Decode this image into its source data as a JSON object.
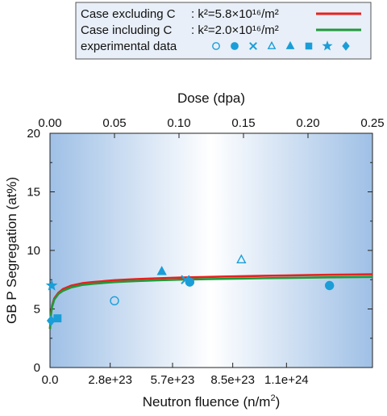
{
  "chart_data": {
    "type": "scatter",
    "x_bottom": {
      "label": "Neutron fluence (n/m²)",
      "range": [
        0,
        1.5e+24
      ],
      "ticks": [
        0,
        2.8e+23,
        5.7e+23,
        8.5e+23,
        1.1e+24
      ],
      "tick_labels": [
        "0.0",
        "2.8e+23",
        "5.7e+23",
        "8.5e+23",
        "1.1e+24"
      ]
    },
    "x_top": {
      "label": "Dose (dpa)",
      "range": [
        0,
        0.25
      ],
      "ticks": [
        0,
        0.05,
        0.1,
        0.15,
        0.2,
        0.25
      ],
      "tick_labels": [
        "0.00",
        "0.05",
        "0.10",
        "0.15",
        "0.20",
        "0.25"
      ]
    },
    "y": {
      "label": "GB P Segregation (at%)",
      "range": [
        0,
        20
      ],
      "ticks": [
        0,
        5,
        10,
        15,
        20
      ],
      "tick_labels": [
        "0",
        "5",
        "10",
        "15",
        "20"
      ]
    },
    "series": [
      {
        "name": "Case excluding C",
        "formula_label": "k²=5.8×10¹⁶/m²",
        "kind": "line",
        "color": "#e8211f",
        "x": [
          0,
          5e+21,
          1e+22,
          2e+22,
          4e+22,
          6e+22,
          1e+23,
          1.5e+23,
          2e+23,
          3e+23,
          4e+23,
          5e+23,
          6e+23,
          7e+23,
          8e+23,
          9e+23,
          1e+24,
          1.1e+24,
          1.2e+24,
          1.3e+24,
          1.4e+24,
          1.5e+24
        ],
        "y": [
          3.3,
          4.7,
          5.3,
          5.9,
          6.4,
          6.7,
          7.0,
          7.2,
          7.3,
          7.45,
          7.55,
          7.62,
          7.68,
          7.72,
          7.76,
          7.8,
          7.83,
          7.86,
          7.89,
          7.92,
          7.94,
          7.96
        ]
      },
      {
        "name": "Case including C",
        "formula_label": "k²=2.0×10¹⁶/m²",
        "kind": "line",
        "color": "#1f9a3a",
        "x": [
          0,
          5e+21,
          1e+22,
          2e+22,
          4e+22,
          6e+22,
          1e+23,
          1.5e+23,
          2e+23,
          3e+23,
          4e+23,
          5e+23,
          6e+23,
          7e+23,
          8e+23,
          9e+23,
          1e+24,
          1.1e+24,
          1.2e+24,
          1.3e+24,
          1.4e+24,
          1.5e+24
        ],
        "y": [
          3.3,
          4.6,
          5.2,
          5.8,
          6.3,
          6.55,
          6.85,
          7.05,
          7.15,
          7.3,
          7.38,
          7.45,
          7.5,
          7.54,
          7.57,
          7.6,
          7.63,
          7.65,
          7.68,
          7.7,
          7.72,
          7.74
        ]
      }
    ],
    "experimental": {
      "name": "experimental data",
      "color": "#1a9ed8",
      "points": [
        {
          "marker": "circle-open",
          "x": 3e+23,
          "y": 5.7
        },
        {
          "marker": "circle-filled",
          "x": 6.5e+23,
          "y": 7.3
        },
        {
          "marker": "circle-filled",
          "x": 1.3e+24,
          "y": 7.0
        },
        {
          "marker": "cross",
          "x": 6.3e+23,
          "y": 7.5
        },
        {
          "marker": "triangle-open",
          "x": 8.9e+23,
          "y": 9.2
        },
        {
          "marker": "triangle-filled",
          "x": 5.2e+23,
          "y": 8.2
        },
        {
          "marker": "square-filled",
          "x": 3.5e+22,
          "y": 4.2
        },
        {
          "marker": "star-filled",
          "x": 8e+21,
          "y": 7.0
        },
        {
          "marker": "diamond-filled",
          "x": 5e+21,
          "y": 4.0
        }
      ]
    },
    "legend": {
      "placement": "top",
      "markers": [
        "circle-open",
        "circle-filled",
        "cross",
        "triangle-open",
        "triangle-filled",
        "square-filled",
        "star-filled",
        "diamond-filled"
      ]
    },
    "grid": false,
    "background": "blue gradient"
  }
}
